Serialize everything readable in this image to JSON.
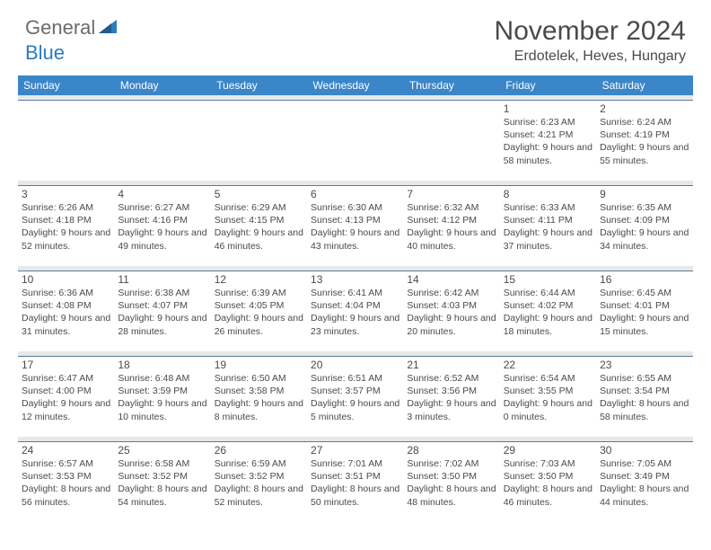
{
  "logo": {
    "text_general": "General",
    "text_blue": "Blue",
    "icon_color": "#2b7bbf"
  },
  "header": {
    "month_title": "November 2024",
    "location": "Erdotelek, Heves, Hungary"
  },
  "styling": {
    "header_bg": "#3a86c8",
    "header_text": "#ffffff",
    "cell_border": "#5a7a9a",
    "spacer_bg": "#e8e8e8",
    "body_text": "#4a4a4a",
    "day_font_size": 12,
    "info_font_size": 10.5
  },
  "day_headers": [
    "Sunday",
    "Monday",
    "Tuesday",
    "Wednesday",
    "Thursday",
    "Friday",
    "Saturday"
  ],
  "weeks": [
    [
      null,
      null,
      null,
      null,
      null,
      {
        "n": "1",
        "sr": "Sunrise: 6:23 AM",
        "ss": "Sunset: 4:21 PM",
        "dl": "Daylight: 9 hours and 58 minutes."
      },
      {
        "n": "2",
        "sr": "Sunrise: 6:24 AM",
        "ss": "Sunset: 4:19 PM",
        "dl": "Daylight: 9 hours and 55 minutes."
      }
    ],
    [
      {
        "n": "3",
        "sr": "Sunrise: 6:26 AM",
        "ss": "Sunset: 4:18 PM",
        "dl": "Daylight: 9 hours and 52 minutes."
      },
      {
        "n": "4",
        "sr": "Sunrise: 6:27 AM",
        "ss": "Sunset: 4:16 PM",
        "dl": "Daylight: 9 hours and 49 minutes."
      },
      {
        "n": "5",
        "sr": "Sunrise: 6:29 AM",
        "ss": "Sunset: 4:15 PM",
        "dl": "Daylight: 9 hours and 46 minutes."
      },
      {
        "n": "6",
        "sr": "Sunrise: 6:30 AM",
        "ss": "Sunset: 4:13 PM",
        "dl": "Daylight: 9 hours and 43 minutes."
      },
      {
        "n": "7",
        "sr": "Sunrise: 6:32 AM",
        "ss": "Sunset: 4:12 PM",
        "dl": "Daylight: 9 hours and 40 minutes."
      },
      {
        "n": "8",
        "sr": "Sunrise: 6:33 AM",
        "ss": "Sunset: 4:11 PM",
        "dl": "Daylight: 9 hours and 37 minutes."
      },
      {
        "n": "9",
        "sr": "Sunrise: 6:35 AM",
        "ss": "Sunset: 4:09 PM",
        "dl": "Daylight: 9 hours and 34 minutes."
      }
    ],
    [
      {
        "n": "10",
        "sr": "Sunrise: 6:36 AM",
        "ss": "Sunset: 4:08 PM",
        "dl": "Daylight: 9 hours and 31 minutes."
      },
      {
        "n": "11",
        "sr": "Sunrise: 6:38 AM",
        "ss": "Sunset: 4:07 PM",
        "dl": "Daylight: 9 hours and 28 minutes."
      },
      {
        "n": "12",
        "sr": "Sunrise: 6:39 AM",
        "ss": "Sunset: 4:05 PM",
        "dl": "Daylight: 9 hours and 26 minutes."
      },
      {
        "n": "13",
        "sr": "Sunrise: 6:41 AM",
        "ss": "Sunset: 4:04 PM",
        "dl": "Daylight: 9 hours and 23 minutes."
      },
      {
        "n": "14",
        "sr": "Sunrise: 6:42 AM",
        "ss": "Sunset: 4:03 PM",
        "dl": "Daylight: 9 hours and 20 minutes."
      },
      {
        "n": "15",
        "sr": "Sunrise: 6:44 AM",
        "ss": "Sunset: 4:02 PM",
        "dl": "Daylight: 9 hours and 18 minutes."
      },
      {
        "n": "16",
        "sr": "Sunrise: 6:45 AM",
        "ss": "Sunset: 4:01 PM",
        "dl": "Daylight: 9 hours and 15 minutes."
      }
    ],
    [
      {
        "n": "17",
        "sr": "Sunrise: 6:47 AM",
        "ss": "Sunset: 4:00 PM",
        "dl": "Daylight: 9 hours and 12 minutes."
      },
      {
        "n": "18",
        "sr": "Sunrise: 6:48 AM",
        "ss": "Sunset: 3:59 PM",
        "dl": "Daylight: 9 hours and 10 minutes."
      },
      {
        "n": "19",
        "sr": "Sunrise: 6:50 AM",
        "ss": "Sunset: 3:58 PM",
        "dl": "Daylight: 9 hours and 8 minutes."
      },
      {
        "n": "20",
        "sr": "Sunrise: 6:51 AM",
        "ss": "Sunset: 3:57 PM",
        "dl": "Daylight: 9 hours and 5 minutes."
      },
      {
        "n": "21",
        "sr": "Sunrise: 6:52 AM",
        "ss": "Sunset: 3:56 PM",
        "dl": "Daylight: 9 hours and 3 minutes."
      },
      {
        "n": "22",
        "sr": "Sunrise: 6:54 AM",
        "ss": "Sunset: 3:55 PM",
        "dl": "Daylight: 9 hours and 0 minutes."
      },
      {
        "n": "23",
        "sr": "Sunrise: 6:55 AM",
        "ss": "Sunset: 3:54 PM",
        "dl": "Daylight: 8 hours and 58 minutes."
      }
    ],
    [
      {
        "n": "24",
        "sr": "Sunrise: 6:57 AM",
        "ss": "Sunset: 3:53 PM",
        "dl": "Daylight: 8 hours and 56 minutes."
      },
      {
        "n": "25",
        "sr": "Sunrise: 6:58 AM",
        "ss": "Sunset: 3:52 PM",
        "dl": "Daylight: 8 hours and 54 minutes."
      },
      {
        "n": "26",
        "sr": "Sunrise: 6:59 AM",
        "ss": "Sunset: 3:52 PM",
        "dl": "Daylight: 8 hours and 52 minutes."
      },
      {
        "n": "27",
        "sr": "Sunrise: 7:01 AM",
        "ss": "Sunset: 3:51 PM",
        "dl": "Daylight: 8 hours and 50 minutes."
      },
      {
        "n": "28",
        "sr": "Sunrise: 7:02 AM",
        "ss": "Sunset: 3:50 PM",
        "dl": "Daylight: 8 hours and 48 minutes."
      },
      {
        "n": "29",
        "sr": "Sunrise: 7:03 AM",
        "ss": "Sunset: 3:50 PM",
        "dl": "Daylight: 8 hours and 46 minutes."
      },
      {
        "n": "30",
        "sr": "Sunrise: 7:05 AM",
        "ss": "Sunset: 3:49 PM",
        "dl": "Daylight: 8 hours and 44 minutes."
      }
    ]
  ]
}
